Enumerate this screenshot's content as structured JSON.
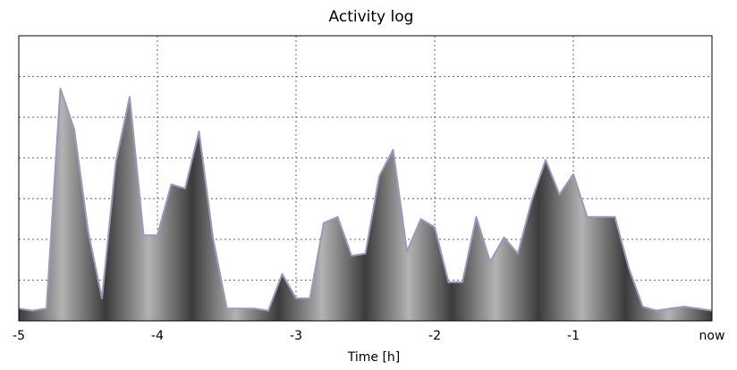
{
  "chart_data": {
    "type": "area",
    "title": "Activity log",
    "xlabel": "Time [h]",
    "ylabel": "",
    "xlim": [
      -5,
      0
    ],
    "ylim": [
      0,
      7
    ],
    "grid": true,
    "x_ticks": [
      {
        "value": -5,
        "label": "-5"
      },
      {
        "value": -4,
        "label": "-4"
      },
      {
        "value": -3,
        "label": "-3"
      },
      {
        "value": -2,
        "label": "-2"
      },
      {
        "value": -1,
        "label": "-1"
      },
      {
        "value": 0,
        "label": "now"
      }
    ],
    "y_gridlines": [
      1,
      2,
      3,
      4,
      5,
      6
    ],
    "colors": {
      "fill_light": "#b3b3b3",
      "fill_dark": "#3b3b3b",
      "line": "#9d97c0",
      "frame": "#000000",
      "grid": "#666666"
    },
    "series": [
      {
        "x": [
          -5.0,
          -4.9,
          -4.8,
          -4.7,
          -4.6,
          -4.5,
          -4.4,
          -4.3,
          -4.2,
          -4.1,
          -4.0,
          -3.9,
          -3.8,
          -3.7,
          -3.6,
          -3.5,
          -3.4,
          -3.3,
          -3.2,
          -3.1,
          -3.0,
          -2.9,
          -2.8,
          -2.7,
          -2.6,
          -2.5,
          -2.4,
          -2.3,
          -2.2,
          -2.1,
          -2.0,
          -1.9,
          -1.8,
          -1.7,
          -1.6,
          -1.5,
          -1.4,
          -1.3,
          -1.2,
          -1.1,
          -1.0,
          -0.9,
          -0.8,
          -0.7,
          -0.6,
          -0.5,
          -0.4,
          -0.3,
          -0.2,
          -0.1,
          0.0
        ],
        "values": [
          0.3,
          0.25,
          0.3,
          5.7,
          4.7,
          2.2,
          0.55,
          3.9,
          5.5,
          2.1,
          2.1,
          3.35,
          3.25,
          4.65,
          2.05,
          0.3,
          0.3,
          0.3,
          0.25,
          1.15,
          0.55,
          0.55,
          2.4,
          2.55,
          1.6,
          1.65,
          3.55,
          4.2,
          1.7,
          2.5,
          2.3,
          0.95,
          0.95,
          2.55,
          1.45,
          2.05,
          1.65,
          2.95,
          3.95,
          3.1,
          3.6,
          2.55,
          2.55,
          2.55,
          1.3,
          0.35,
          0.25,
          0.3,
          0.35,
          0.3,
          0.25
        ]
      }
    ]
  }
}
